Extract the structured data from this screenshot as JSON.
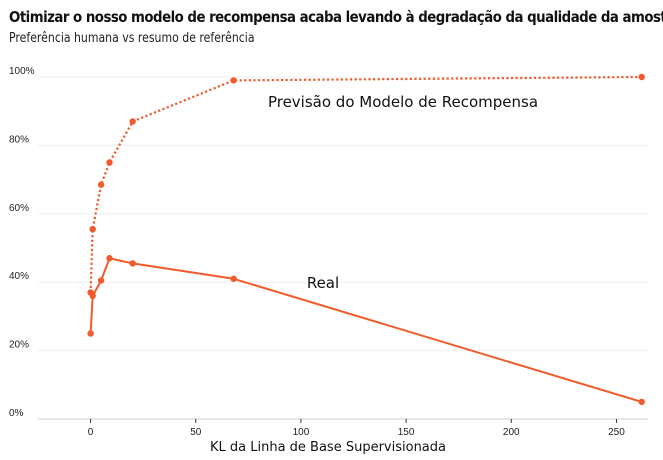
{
  "chart_data": {
    "type": "line",
    "title": "Otimizar o nosso modelo de recompensa acaba levando à degradação da qualidade da amostra",
    "subtitle": "Preferência humana vs resumo de referência",
    "xlabel": "KL da Linha de Base Supervisionada",
    "ylabel": "",
    "xlim": [
      -25,
      265
    ],
    "ylim": [
      0,
      100
    ],
    "x_ticks": [
      0,
      50,
      100,
      150,
      200,
      250
    ],
    "y_ticks": [
      0,
      20,
      40,
      60,
      80,
      100
    ],
    "y_tick_labels": [
      "0%",
      "20%",
      "40%",
      "60%",
      "80%",
      "100%"
    ],
    "grid": true,
    "color": "#f15a2b",
    "series": [
      {
        "name": "Previsão do Modelo de Recompensa",
        "style": "dotted",
        "points": [
          [
            0,
            37
          ],
          [
            1,
            55.5
          ],
          [
            5,
            68.5
          ],
          [
            9,
            75
          ],
          [
            20,
            87
          ],
          [
            68,
            99
          ],
          [
            262,
            100
          ]
        ]
      },
      {
        "name": "Real",
        "style": "solid",
        "points": [
          [
            0,
            25
          ],
          [
            1,
            36
          ],
          [
            5,
            40.5
          ],
          [
            9,
            47
          ],
          [
            20,
            45.5
          ],
          [
            68,
            41
          ],
          [
            262,
            5
          ]
        ]
      }
    ]
  }
}
